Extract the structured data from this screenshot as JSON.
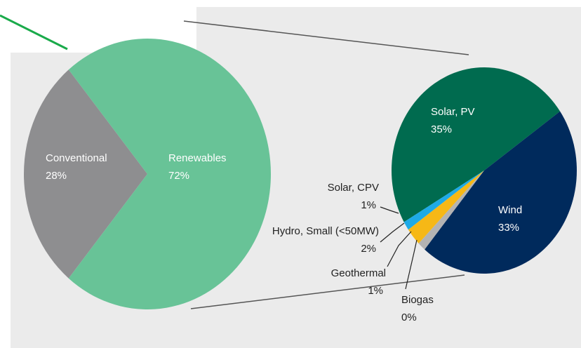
{
  "chart_data": [
    {
      "type": "pie",
      "categories": [
        "Conventional",
        "Renewables"
      ],
      "values": [
        28,
        72
      ],
      "value_labels": [
        "28%",
        "72%"
      ],
      "colors": [
        "#8e8e90",
        "#68c397"
      ]
    },
    {
      "type": "pie",
      "categories": [
        "Solar, PV",
        "Solar, CPV",
        "Hydro, Small (<50MW)",
        "Geothermal",
        "Biogas",
        "Wind"
      ],
      "values": [
        35,
        1,
        2,
        1,
        0,
        33
      ],
      "value_labels": [
        "35%",
        "1%",
        "2%",
        "1%",
        "0%",
        "33%"
      ],
      "colors": [
        "#006b4f",
        "#1eaae7",
        "#f6b816",
        "#b3b3b3",
        "#d8d8d8",
        "#002a5c"
      ]
    }
  ]
}
